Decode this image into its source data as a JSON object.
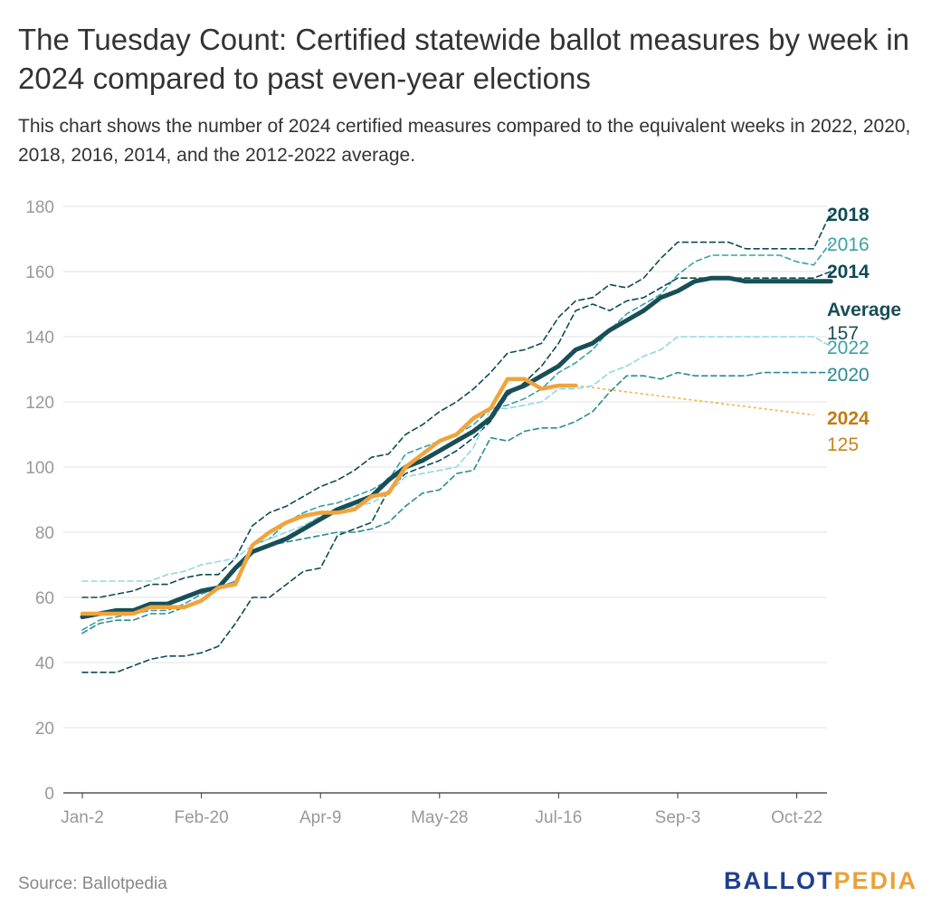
{
  "title": "The Tuesday Count: Certified statewide ballot measures by week in 2024 compared to past even-year elections",
  "subtitle": "This chart shows the number of 2024 certified measures compared to the equivalent weeks in 2022, 2020, 2018, 2016, 2014, and the 2012-2022 average.",
  "source": "Source: Ballotpedia",
  "logo": {
    "part1": "BALLOT",
    "part2": "PEDIA"
  },
  "chart_data": {
    "type": "line",
    "x_tick_labels": [
      "Jan-2",
      "Feb-20",
      "Apr-9",
      "May-28",
      "Jul-16",
      "Sep-3",
      "Oct-22"
    ],
    "x_tick_weeks": [
      0,
      7,
      14,
      21,
      28,
      35,
      42
    ],
    "ylim": [
      0,
      180
    ],
    "y_ticks": [
      0,
      20,
      40,
      60,
      80,
      100,
      120,
      140,
      160,
      180
    ],
    "grid": true,
    "series": [
      {
        "name": "2018",
        "color": "#0d4a55",
        "style": "dashed",
        "label_value": "",
        "values": [
          60,
          60,
          61,
          62,
          64,
          64,
          66,
          67,
          67,
          72,
          82,
          86,
          88,
          91,
          94,
          96,
          99,
          103,
          104,
          110,
          113,
          117,
          120,
          124,
          129,
          135,
          136,
          138,
          146,
          151,
          152,
          156,
          155,
          158,
          164,
          169,
          169,
          169,
          169,
          167,
          167,
          167,
          167,
          167,
          178
        ]
      },
      {
        "name": "2016",
        "color": "#3aa0a8",
        "style": "dashed",
        "label_value": "",
        "values": [
          50,
          53,
          54,
          55,
          56,
          56,
          58,
          61,
          63,
          65,
          76,
          78,
          83,
          86,
          88,
          89,
          91,
          93,
          96,
          104,
          106,
          108,
          110,
          113,
          118,
          119,
          121,
          124,
          129,
          132,
          136,
          142,
          147,
          150,
          153,
          159,
          163,
          165,
          165,
          165,
          165,
          165,
          163,
          162,
          169
        ]
      },
      {
        "name": "2014",
        "color": "#0d4a55",
        "style": "dashed",
        "label_value": "",
        "values": [
          37,
          37,
          37,
          39,
          41,
          42,
          42,
          43,
          45,
          52,
          60,
          60,
          64,
          68,
          69,
          79,
          81,
          83,
          93,
          98,
          100,
          102,
          105,
          109,
          114,
          122,
          126,
          131,
          138,
          148,
          150,
          148,
          151,
          152,
          155,
          158,
          158,
          158,
          158,
          158,
          158,
          158,
          158,
          158,
          160
        ]
      },
      {
        "name": "2022",
        "color": "#8fd8e3",
        "style": "dashed",
        "label_value": "",
        "values": [
          65,
          65,
          65,
          65,
          65,
          67,
          68,
          70,
          71,
          72,
          76,
          78,
          80,
          82,
          85,
          87,
          88,
          89,
          92,
          97,
          98,
          99,
          100,
          106,
          118,
          118,
          119,
          120,
          124,
          124,
          125,
          129,
          131,
          134,
          136,
          140,
          140,
          140,
          140,
          140,
          140,
          140,
          140,
          140,
          137
        ]
      },
      {
        "name": "2020",
        "color": "#2b8a96",
        "style": "dashed",
        "label_value": "",
        "values": [
          49,
          52,
          53,
          53,
          55,
          55,
          57,
          59,
          63,
          65,
          74,
          76,
          77,
          78,
          79,
          80,
          80,
          81,
          83,
          88,
          92,
          93,
          98,
          99,
          109,
          108,
          111,
          112,
          112,
          114,
          117,
          123,
          128,
          128,
          127,
          129,
          128,
          128,
          128,
          128,
          129,
          129,
          129,
          129,
          129
        ]
      },
      {
        "name": "Average",
        "color": "#184f57",
        "style": "solid",
        "label_value": "157",
        "values": [
          54,
          55,
          56,
          56,
          58,
          58,
          60,
          62,
          63,
          69,
          74,
          76,
          78,
          81,
          84,
          87,
          89,
          91,
          96,
          100,
          102,
          105,
          108,
          111,
          115,
          123,
          125,
          128,
          131,
          136,
          138,
          142,
          145,
          148,
          152,
          154,
          157,
          158,
          158,
          157,
          157,
          157,
          157,
          157,
          157
        ]
      },
      {
        "name": "2024",
        "color": "#f0a43c",
        "style": "solid",
        "label_value": "125",
        "values": [
          55,
          55,
          55,
          55,
          57,
          57,
          57,
          59,
          63,
          64,
          76,
          80,
          83,
          85,
          86,
          86,
          87,
          91,
          92,
          100,
          104,
          108,
          110,
          115,
          118,
          127,
          127,
          124,
          125,
          125
        ]
      }
    ],
    "projection_2024": {
      "color": "#f0b445",
      "from": [
        29,
        125
      ],
      "to": [
        43,
        116
      ]
    }
  }
}
